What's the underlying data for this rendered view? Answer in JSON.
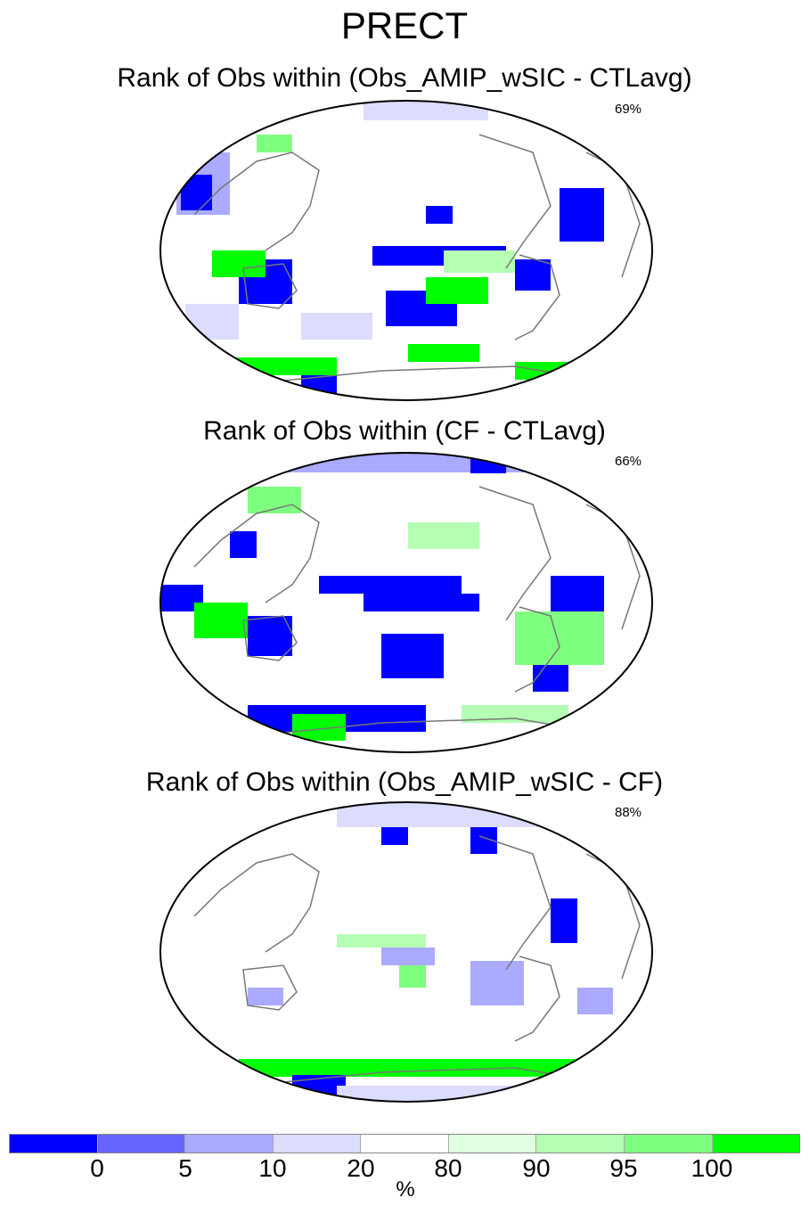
{
  "main_title": "PRECT",
  "panels": [
    {
      "title": "Rank of Obs within (Obs_AMIP_wSIC - CTLavg)",
      "percent": "69%"
    },
    {
      "title": "Rank of Obs within (CF - CTLavg)",
      "percent": "66%"
    },
    {
      "title": "Rank of Obs within (Obs_AMIP_wSIC - CF)",
      "percent": "88%"
    }
  ],
  "colorbar": {
    "colors": [
      "#0000ff",
      "#6666ff",
      "#aaaaff",
      "#dcdcff",
      "#ffffff",
      "#e0ffe0",
      "#b4ffb4",
      "#7fff7f",
      "#00ff00"
    ],
    "ticks": [
      "0",
      "5",
      "10",
      "20",
      "80",
      "90",
      "95",
      "100"
    ],
    "unit": "%"
  },
  "colors": {
    "coastline": "#777777",
    "map_outline": "#000000"
  }
}
